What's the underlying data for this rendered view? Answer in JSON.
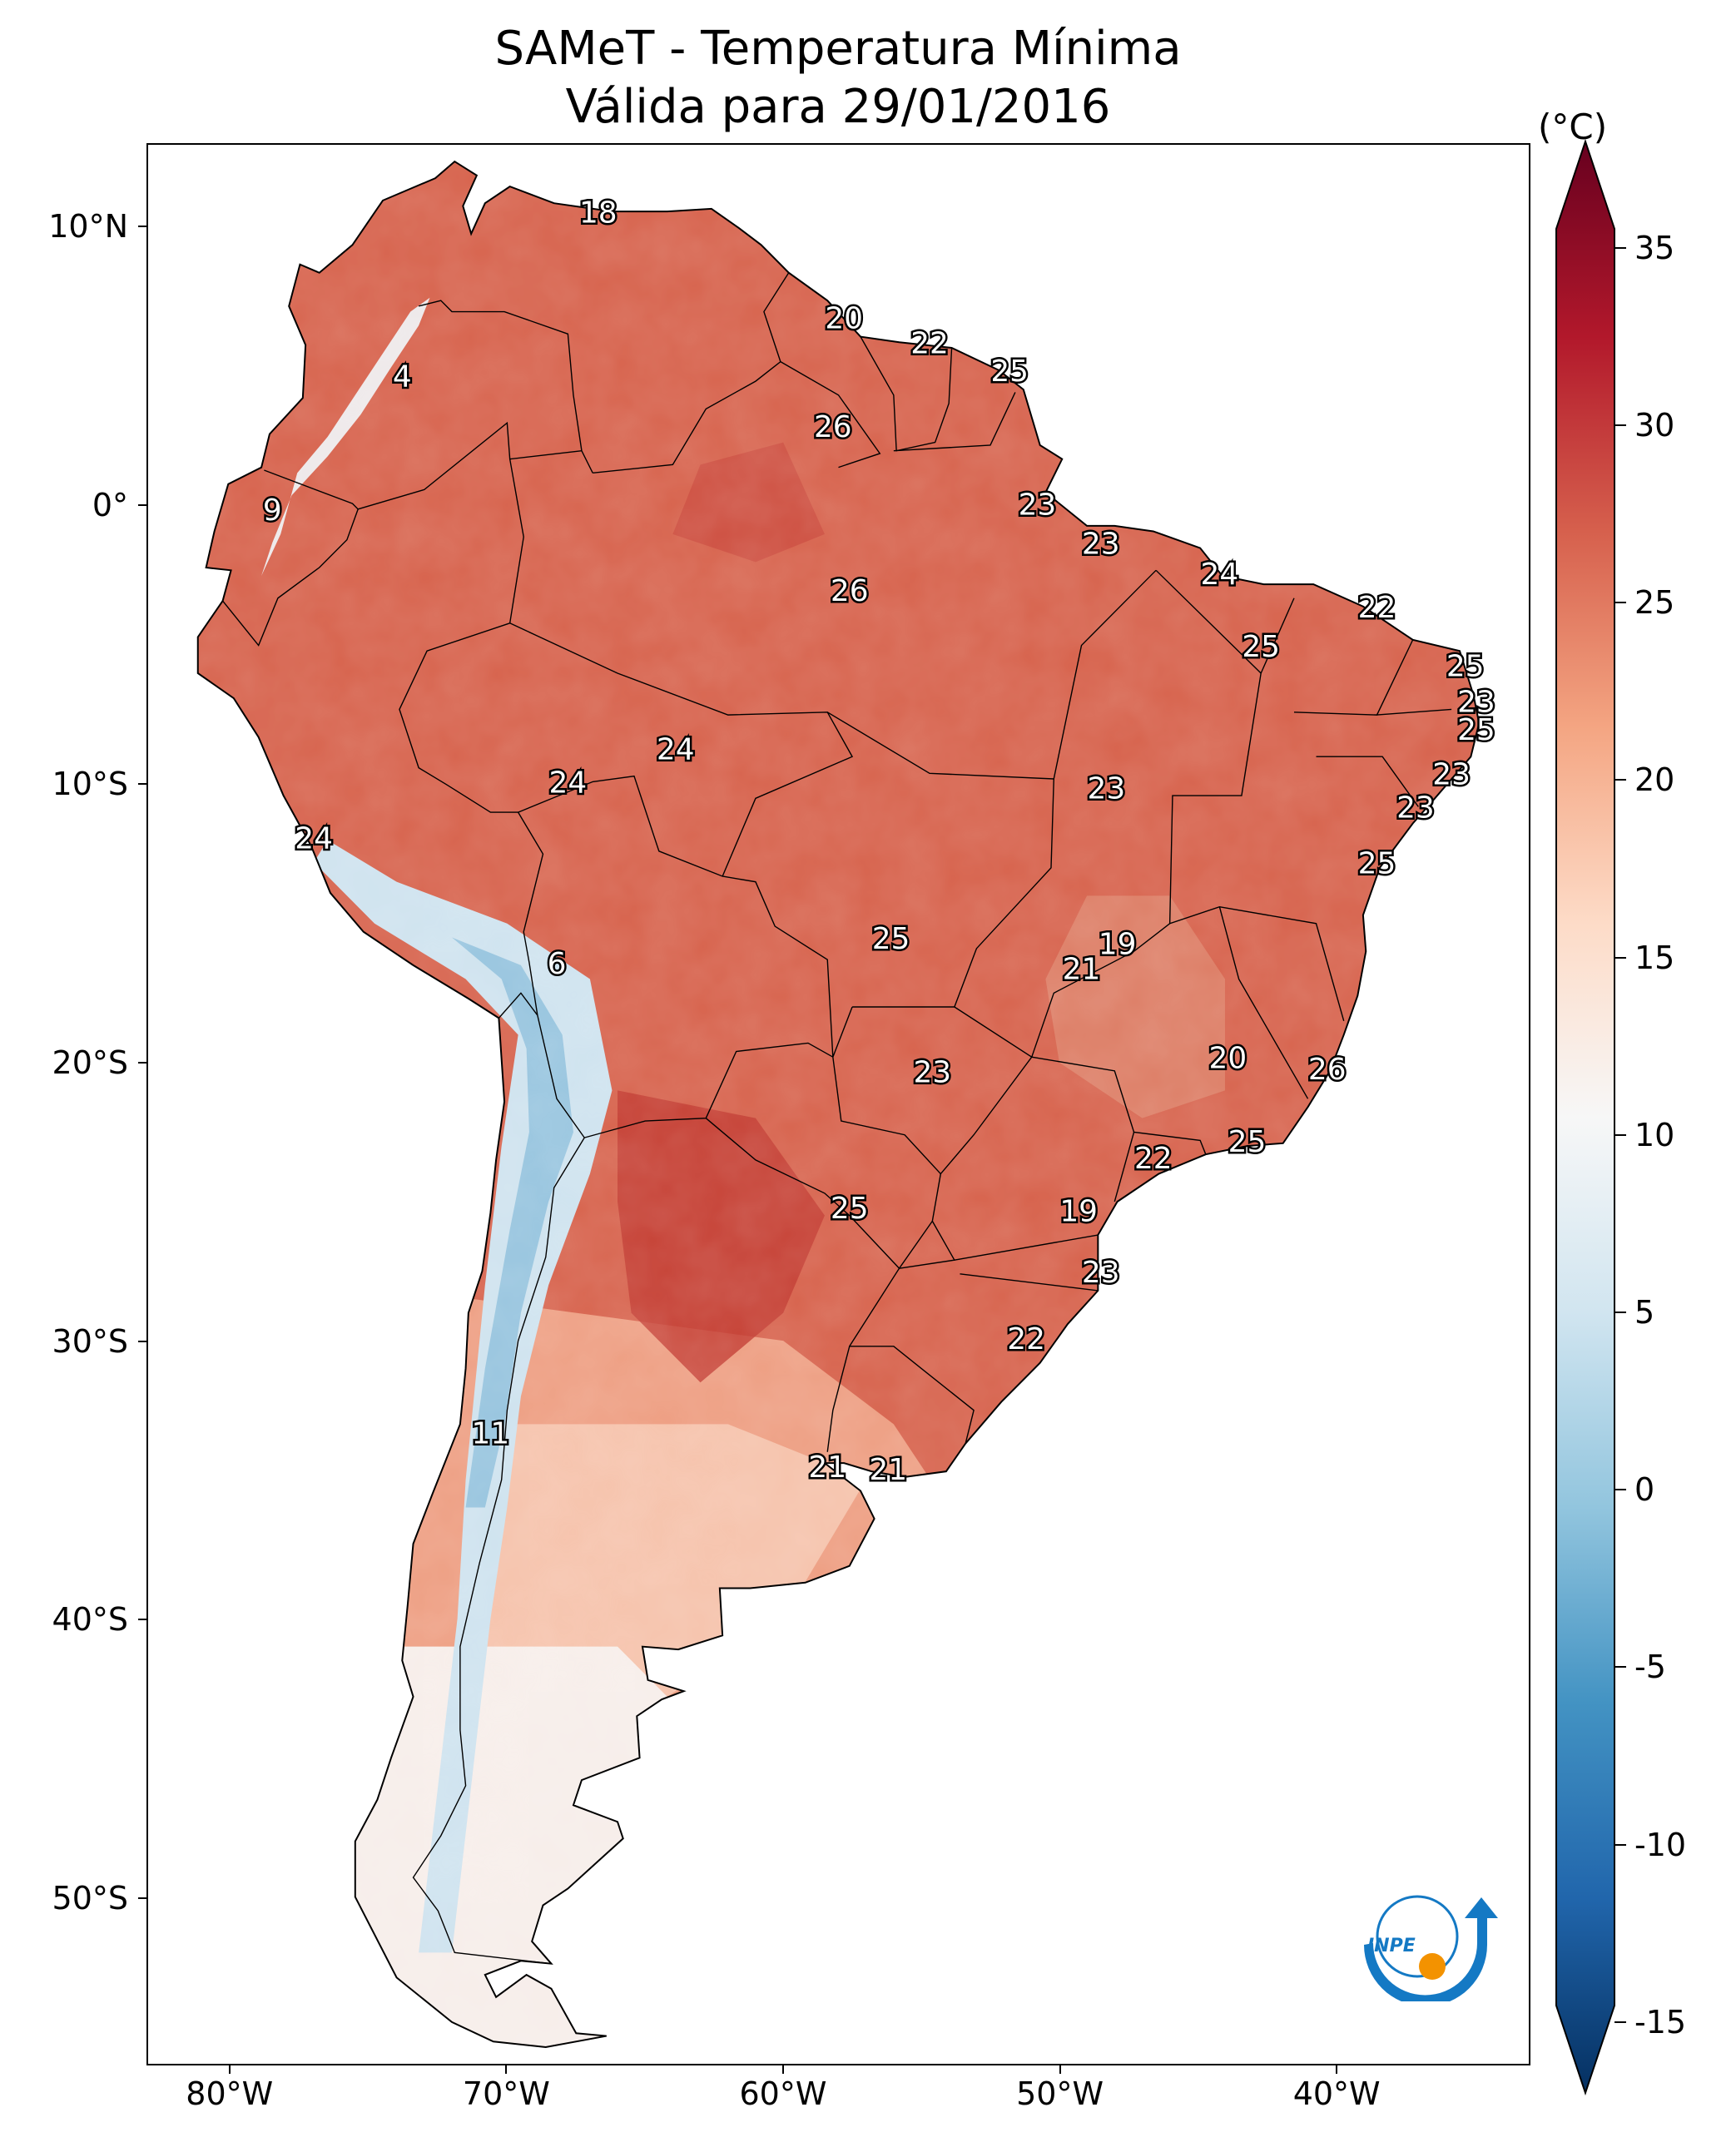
{
  "title_line1": "SAMeT - Temperatura Mínima",
  "title_line2": "Válida para 29/01/2016",
  "map": {
    "lon_range": [
      -83,
      -33
    ],
    "lat_range": [
      -56,
      13
    ],
    "lat_ticks": [
      {
        "lat": 10,
        "label": "10°N"
      },
      {
        "lat": 0,
        "label": "0°"
      },
      {
        "lat": -10,
        "label": "10°S"
      },
      {
        "lat": -20,
        "label": "20°S"
      },
      {
        "lat": -30,
        "label": "30°S"
      },
      {
        "lat": -40,
        "label": "40°S"
      },
      {
        "lat": -50,
        "label": "50°S"
      }
    ],
    "lon_ticks": [
      {
        "lon": -80,
        "label": "80°W"
      },
      {
        "lon": -70,
        "label": "70°W"
      },
      {
        "lon": -60,
        "label": "60°W"
      },
      {
        "lon": -50,
        "label": "50°W"
      },
      {
        "lon": -40,
        "label": "40°W"
      }
    ],
    "stations": [
      {
        "lon": -66.7,
        "lat": 10.5,
        "value": "18"
      },
      {
        "lon": -57.8,
        "lat": 6.7,
        "value": "20"
      },
      {
        "lon": -54.7,
        "lat": 5.8,
        "value": "22"
      },
      {
        "lon": -51.8,
        "lat": 4.8,
        "value": "25"
      },
      {
        "lon": -73.8,
        "lat": 4.6,
        "value": "4"
      },
      {
        "lon": -58.2,
        "lat": 2.8,
        "value": "26"
      },
      {
        "lon": -78.5,
        "lat": -0.2,
        "value": "9"
      },
      {
        "lon": -50.8,
        "lat": 0.0,
        "value": "23"
      },
      {
        "lon": -48.5,
        "lat": -1.4,
        "value": "23"
      },
      {
        "lon": -44.2,
        "lat": -2.5,
        "value": "24"
      },
      {
        "lon": -57.6,
        "lat": -3.1,
        "value": "26"
      },
      {
        "lon": -38.5,
        "lat": -3.7,
        "value": "22"
      },
      {
        "lon": -42.7,
        "lat": -5.1,
        "value": "25"
      },
      {
        "lon": -35.3,
        "lat": -5.8,
        "value": "25"
      },
      {
        "lon": -34.9,
        "lat": -7.1,
        "value": "23"
      },
      {
        "lon": -34.9,
        "lat": -8.1,
        "value": "25"
      },
      {
        "lon": -63.9,
        "lat": -8.8,
        "value": "24"
      },
      {
        "lon": -67.8,
        "lat": -10.0,
        "value": "24"
      },
      {
        "lon": -35.8,
        "lat": -9.7,
        "value": "23"
      },
      {
        "lon": -48.3,
        "lat": -10.2,
        "value": "23"
      },
      {
        "lon": -37.1,
        "lat": -10.9,
        "value": "23"
      },
      {
        "lon": -77.0,
        "lat": -12.0,
        "value": "24"
      },
      {
        "lon": -38.5,
        "lat": -12.9,
        "value": "25"
      },
      {
        "lon": -56.1,
        "lat": -15.6,
        "value": "25"
      },
      {
        "lon": -47.9,
        "lat": -15.8,
        "value": "19"
      },
      {
        "lon": -49.2,
        "lat": -16.7,
        "value": "21"
      },
      {
        "lon": -68.2,
        "lat": -16.5,
        "value": "6"
      },
      {
        "lon": -43.9,
        "lat": -19.9,
        "value": "20"
      },
      {
        "lon": -54.6,
        "lat": -20.4,
        "value": "23"
      },
      {
        "lon": -40.3,
        "lat": -20.3,
        "value": "26"
      },
      {
        "lon": -43.2,
        "lat": -22.9,
        "value": "25"
      },
      {
        "lon": -46.6,
        "lat": -23.5,
        "value": "22"
      },
      {
        "lon": -57.6,
        "lat": -25.3,
        "value": "25"
      },
      {
        "lon": -49.3,
        "lat": -25.4,
        "value": "19"
      },
      {
        "lon": -48.5,
        "lat": -27.6,
        "value": "23"
      },
      {
        "lon": -51.2,
        "lat": -30.0,
        "value": "22"
      },
      {
        "lon": -70.6,
        "lat": -33.4,
        "value": "11"
      },
      {
        "lon": -58.4,
        "lat": -34.6,
        "value": "21"
      },
      {
        "lon": -56.2,
        "lat": -34.7,
        "value": "21"
      }
    ]
  },
  "colorbar": {
    "unit": "(°C)",
    "min": -17,
    "max": 38,
    "colors": [
      "#053061",
      "#2166ac",
      "#4393c3",
      "#92c5de",
      "#d1e5f0",
      "#f7f7f7",
      "#fddbc7",
      "#f4a582",
      "#d6604d",
      "#b2182b",
      "#67001f"
    ],
    "ticks": [
      {
        "value": 35,
        "label": "35"
      },
      {
        "value": 30,
        "label": "30"
      },
      {
        "value": 25,
        "label": "25"
      },
      {
        "value": 20,
        "label": "20"
      },
      {
        "value": 15,
        "label": "15"
      },
      {
        "value": 10,
        "label": "10"
      },
      {
        "value": 5,
        "label": "5"
      },
      {
        "value": 0,
        "label": "0"
      },
      {
        "value": -5,
        "label": "-5"
      },
      {
        "value": -10,
        "label": "-10"
      },
      {
        "value": -15,
        "label": "-15"
      }
    ]
  },
  "logo": {
    "text": "INPE",
    "colors": {
      "blue": "#1479c4",
      "orange": "#f39200"
    }
  }
}
